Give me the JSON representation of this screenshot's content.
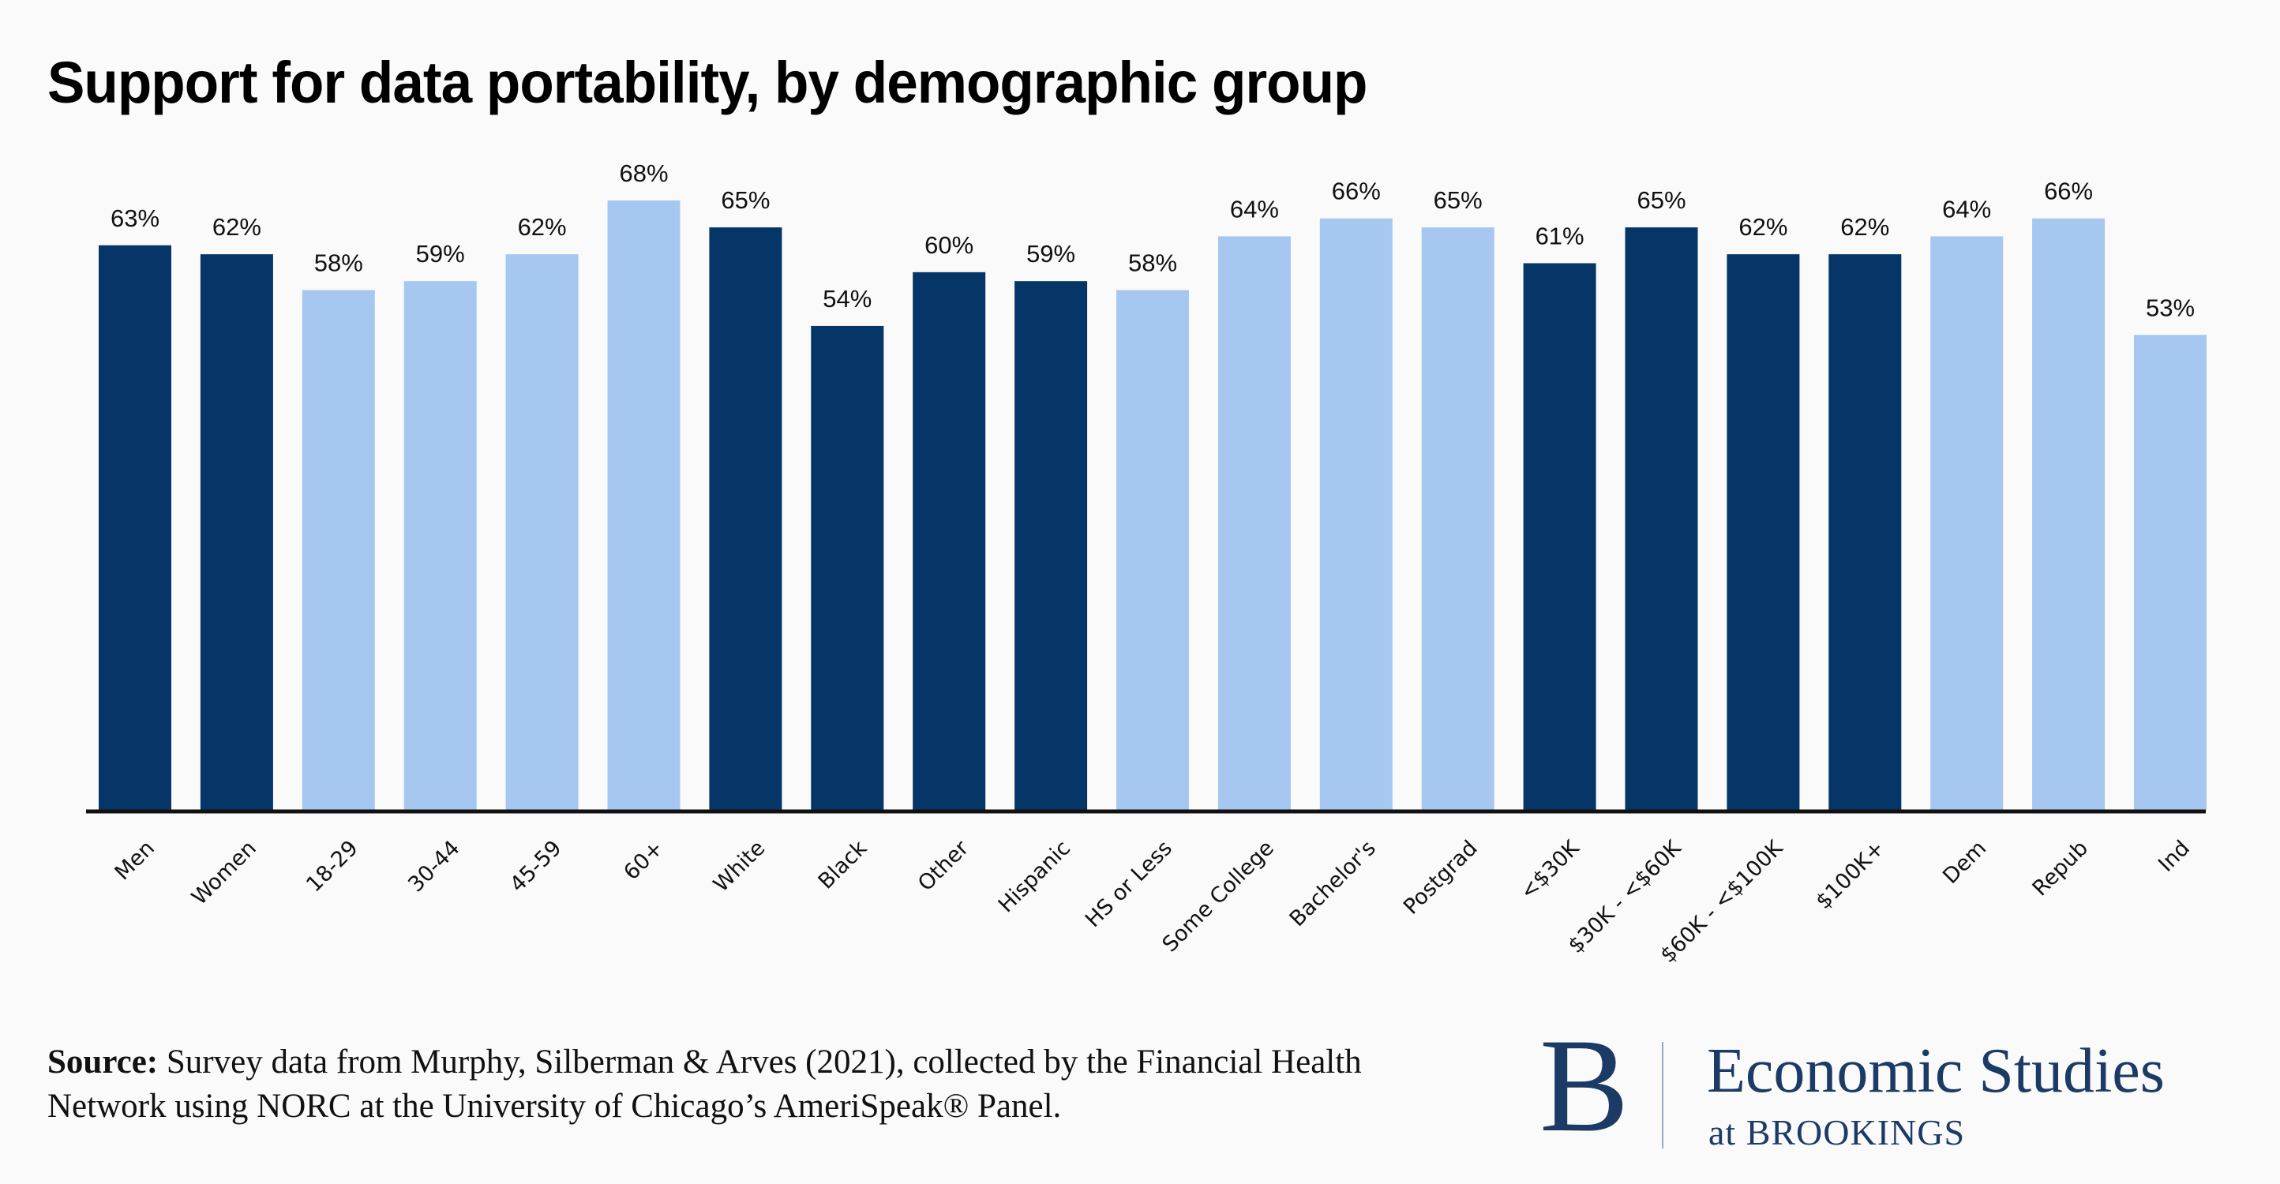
{
  "header": {
    "title": "Support for data portability, by demographic group"
  },
  "colors": {
    "dark": "#063567",
    "light": "#a6c8f0",
    "axis": "#111111",
    "text": "#111111",
    "brand": "#1c3a66"
  },
  "chart_data": {
    "type": "bar",
    "title": "Support for data portability, by demographic group",
    "xlabel": "",
    "ylabel": "",
    "ylim": [
      0,
      68
    ],
    "grid": false,
    "legend": "none",
    "value_format": "percent",
    "categories": [
      "Men",
      "Women",
      "18-29",
      "30-44",
      "45-59",
      "60+",
      "White",
      "Black",
      "Other",
      "Hispanic",
      "HS or Less",
      "Some College",
      "Bachelor's",
      "Postgrad",
      "<$30K",
      "$30K - <$60K",
      "$60K - <$100K",
      "$100K+",
      "Dem",
      "Repub",
      "Ind"
    ],
    "values": [
      63,
      62,
      58,
      59,
      62,
      68,
      65,
      54,
      60,
      59,
      58,
      64,
      66,
      65,
      61,
      65,
      62,
      62,
      64,
      66,
      53
    ],
    "labels": [
      "63%",
      "62%",
      "58%",
      "59%",
      "62%",
      "68%",
      "65%",
      "54%",
      "60%",
      "59%",
      "58%",
      "64%",
      "66%",
      "65%",
      "61%",
      "65%",
      "62%",
      "62%",
      "64%",
      "66%",
      "53%"
    ],
    "bar_colors": [
      "dark",
      "dark",
      "light",
      "light",
      "light",
      "light",
      "dark",
      "dark",
      "dark",
      "dark",
      "light",
      "light",
      "light",
      "light",
      "dark",
      "dark",
      "dark",
      "dark",
      "light",
      "light",
      "light"
    ]
  },
  "footer": {
    "source_label": "Source:",
    "source_text": " Survey data from Murphy, Silberman & Arves (2021), collected by the Financial Health Network using NORC at the University of Chicago’s AmeriSpeak® Panel."
  },
  "logo": {
    "mark": "B",
    "line1": "Economic Studies",
    "line2": "at BROOKINGS"
  }
}
